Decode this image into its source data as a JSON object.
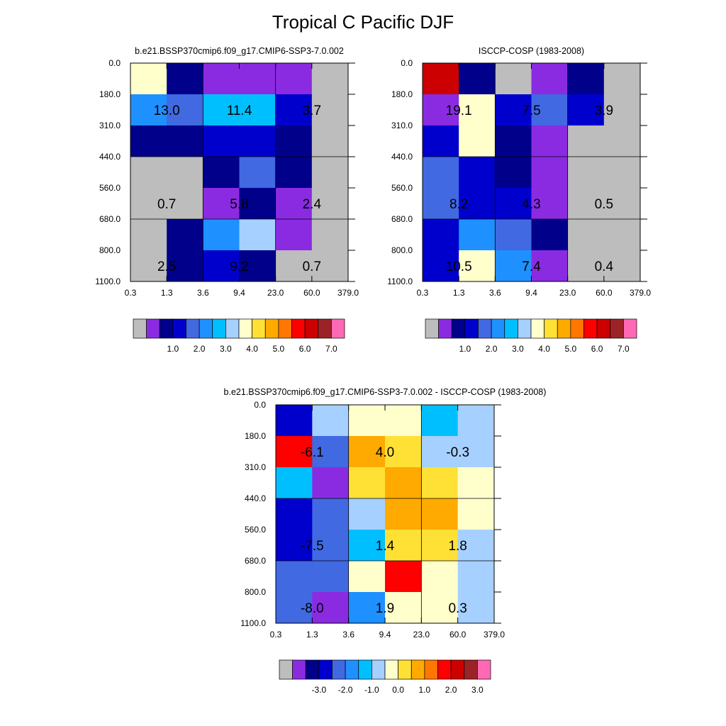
{
  "figure_title": "Tropical C Pacific DJF",
  "palettes": {
    "abs": [
      "#BDBDBD",
      "#8A2BE2",
      "#00008B",
      "#0000CD",
      "#4169E1",
      "#1E90FF",
      "#00BFFF",
      "#A6D0FF",
      "#FFFFCC",
      "#FFE135",
      "#FFAA00",
      "#FF7700",
      "#FF0000",
      "#CC0000",
      "#9B2226",
      "#FF69B4"
    ],
    "diff": [
      "#BDBDBD",
      "#8A2BE2",
      "#00008B",
      "#0000CD",
      "#4169E1",
      "#1E90FF",
      "#00BFFF",
      "#A6D0FF",
      "#FFFFCC",
      "#FFE135",
      "#FFAA00",
      "#FF7700",
      "#FF0000",
      "#CC0000",
      "#9B2226",
      "#FF69B4"
    ]
  },
  "chart_data": [
    {
      "type": "heatmap",
      "title": "b.e21.BSSP370cmip6.f09_g17.CMIP6-SSP3-7.0.002",
      "x_tick_labels": [
        "0.3",
        "1.3",
        "3.6",
        "9.4",
        "23.0",
        "60.0",
        "379.0"
      ],
      "y_tick_labels": [
        "0.0",
        "180.0",
        "310.0",
        "440.0",
        "560.0",
        "680.0",
        "800.0",
        "1100.0"
      ],
      "cell_colors": [
        [
          8,
          2,
          1,
          1,
          1,
          0
        ],
        [
          5,
          4,
          6,
          6,
          3,
          0
        ],
        [
          2,
          2,
          3,
          3,
          2,
          0
        ],
        [
          0,
          0,
          2,
          4,
          2,
          0
        ],
        [
          0,
          0,
          1,
          2,
          1,
          0
        ],
        [
          0,
          2,
          5,
          7,
          1,
          0
        ],
        [
          0,
          2,
          3,
          2,
          0,
          0
        ]
      ],
      "cell_labels": [
        {
          "text": "13.0",
          "col": 1,
          "row": 1
        },
        {
          "text": "11.4",
          "col": 3,
          "row": 1
        },
        {
          "text": "3.7",
          "col": 5,
          "row": 1
        },
        {
          "text": "0.7",
          "col": 1,
          "row": 4
        },
        {
          "text": "5.8",
          "col": 3,
          "row": 4
        },
        {
          "text": "2.4",
          "col": 5,
          "row": 4
        },
        {
          "text": "2.5",
          "col": 1,
          "row": 6
        },
        {
          "text": "9.2",
          "col": 3,
          "row": 6
        },
        {
          "text": "0.7",
          "col": 5,
          "row": 6
        }
      ],
      "colorbar_tick_labels": [
        "1.0",
        "2.0",
        "3.0",
        "4.0",
        "5.0",
        "6.0",
        "7.0"
      ],
      "palette": "abs"
    },
    {
      "type": "heatmap",
      "title": "ISCCP-COSP (1983-2008)",
      "x_tick_labels": [
        "0.3",
        "1.3",
        "3.6",
        "9.4",
        "23.0",
        "60.0",
        "379.0"
      ],
      "y_tick_labels": [
        "0.0",
        "180.0",
        "310.0",
        "440.0",
        "560.0",
        "680.0",
        "800.0",
        "1100.0"
      ],
      "cell_colors": [
        [
          13,
          2,
          0,
          1,
          2,
          0
        ],
        [
          1,
          8,
          3,
          4,
          3,
          0
        ],
        [
          3,
          8,
          2,
          1,
          0,
          0
        ],
        [
          4,
          3,
          2,
          1,
          0,
          0
        ],
        [
          4,
          3,
          3,
          1,
          0,
          0
        ],
        [
          3,
          5,
          4,
          2,
          0,
          0
        ],
        [
          3,
          8,
          5,
          1,
          0,
          0
        ]
      ],
      "cell_labels": [
        {
          "text": "19.1",
          "col": 1,
          "row": 1
        },
        {
          "text": "7.5",
          "col": 3,
          "row": 1
        },
        {
          "text": "3.9",
          "col": 5,
          "row": 1
        },
        {
          "text": "8.2",
          "col": 1,
          "row": 4
        },
        {
          "text": "4.3",
          "col": 3,
          "row": 4
        },
        {
          "text": "0.5",
          "col": 5,
          "row": 4
        },
        {
          "text": "10.5",
          "col": 1,
          "row": 6
        },
        {
          "text": "7.4",
          "col": 3,
          "row": 6
        },
        {
          "text": "0.4",
          "col": 5,
          "row": 6
        }
      ],
      "colorbar_tick_labels": [
        "1.0",
        "2.0",
        "3.0",
        "4.0",
        "5.0",
        "6.0",
        "7.0"
      ],
      "palette": "abs"
    },
    {
      "type": "heatmap",
      "title": "b.e21.BSSP370cmip6.f09_g17.CMIP6-SSP3-7.0.002 - ISCCP-COSP (1983-2008)",
      "x_tick_labels": [
        "0.3",
        "1.3",
        "3.6",
        "9.4",
        "23.0",
        "60.0",
        "379.0"
      ],
      "y_tick_labels": [
        "0.0",
        "180.0",
        "310.0",
        "440.0",
        "560.0",
        "680.0",
        "800.0",
        "1100.0"
      ],
      "cell_colors": [
        [
          3,
          7,
          8,
          8,
          6,
          7
        ],
        [
          12,
          4,
          10,
          9,
          7,
          7
        ],
        [
          6,
          1,
          9,
          10,
          9,
          8
        ],
        [
          3,
          4,
          7,
          10,
          10,
          8
        ],
        [
          3,
          4,
          6,
          9,
          9,
          7
        ],
        [
          4,
          4,
          8,
          12,
          8,
          7
        ],
        [
          4,
          1,
          5,
          8,
          8,
          7
        ]
      ],
      "cell_labels": [
        {
          "text": "-6.1",
          "col": 1,
          "row": 1
        },
        {
          "text": "4.0",
          "col": 3,
          "row": 1
        },
        {
          "text": "-0.3",
          "col": 5,
          "row": 1
        },
        {
          "text": "-7.5",
          "col": 1,
          "row": 4
        },
        {
          "text": "1.4",
          "col": 3,
          "row": 4
        },
        {
          "text": "1.8",
          "col": 5,
          "row": 4
        },
        {
          "text": "-8.0",
          "col": 1,
          "row": 6
        },
        {
          "text": "1.9",
          "col": 3,
          "row": 6
        },
        {
          "text": "0.3",
          "col": 5,
          "row": 6
        }
      ],
      "colorbar_tick_labels": [
        "-3.0",
        "-2.0",
        "-1.0",
        "0.0",
        "1.0",
        "2.0",
        "3.0"
      ],
      "palette": "diff"
    }
  ]
}
